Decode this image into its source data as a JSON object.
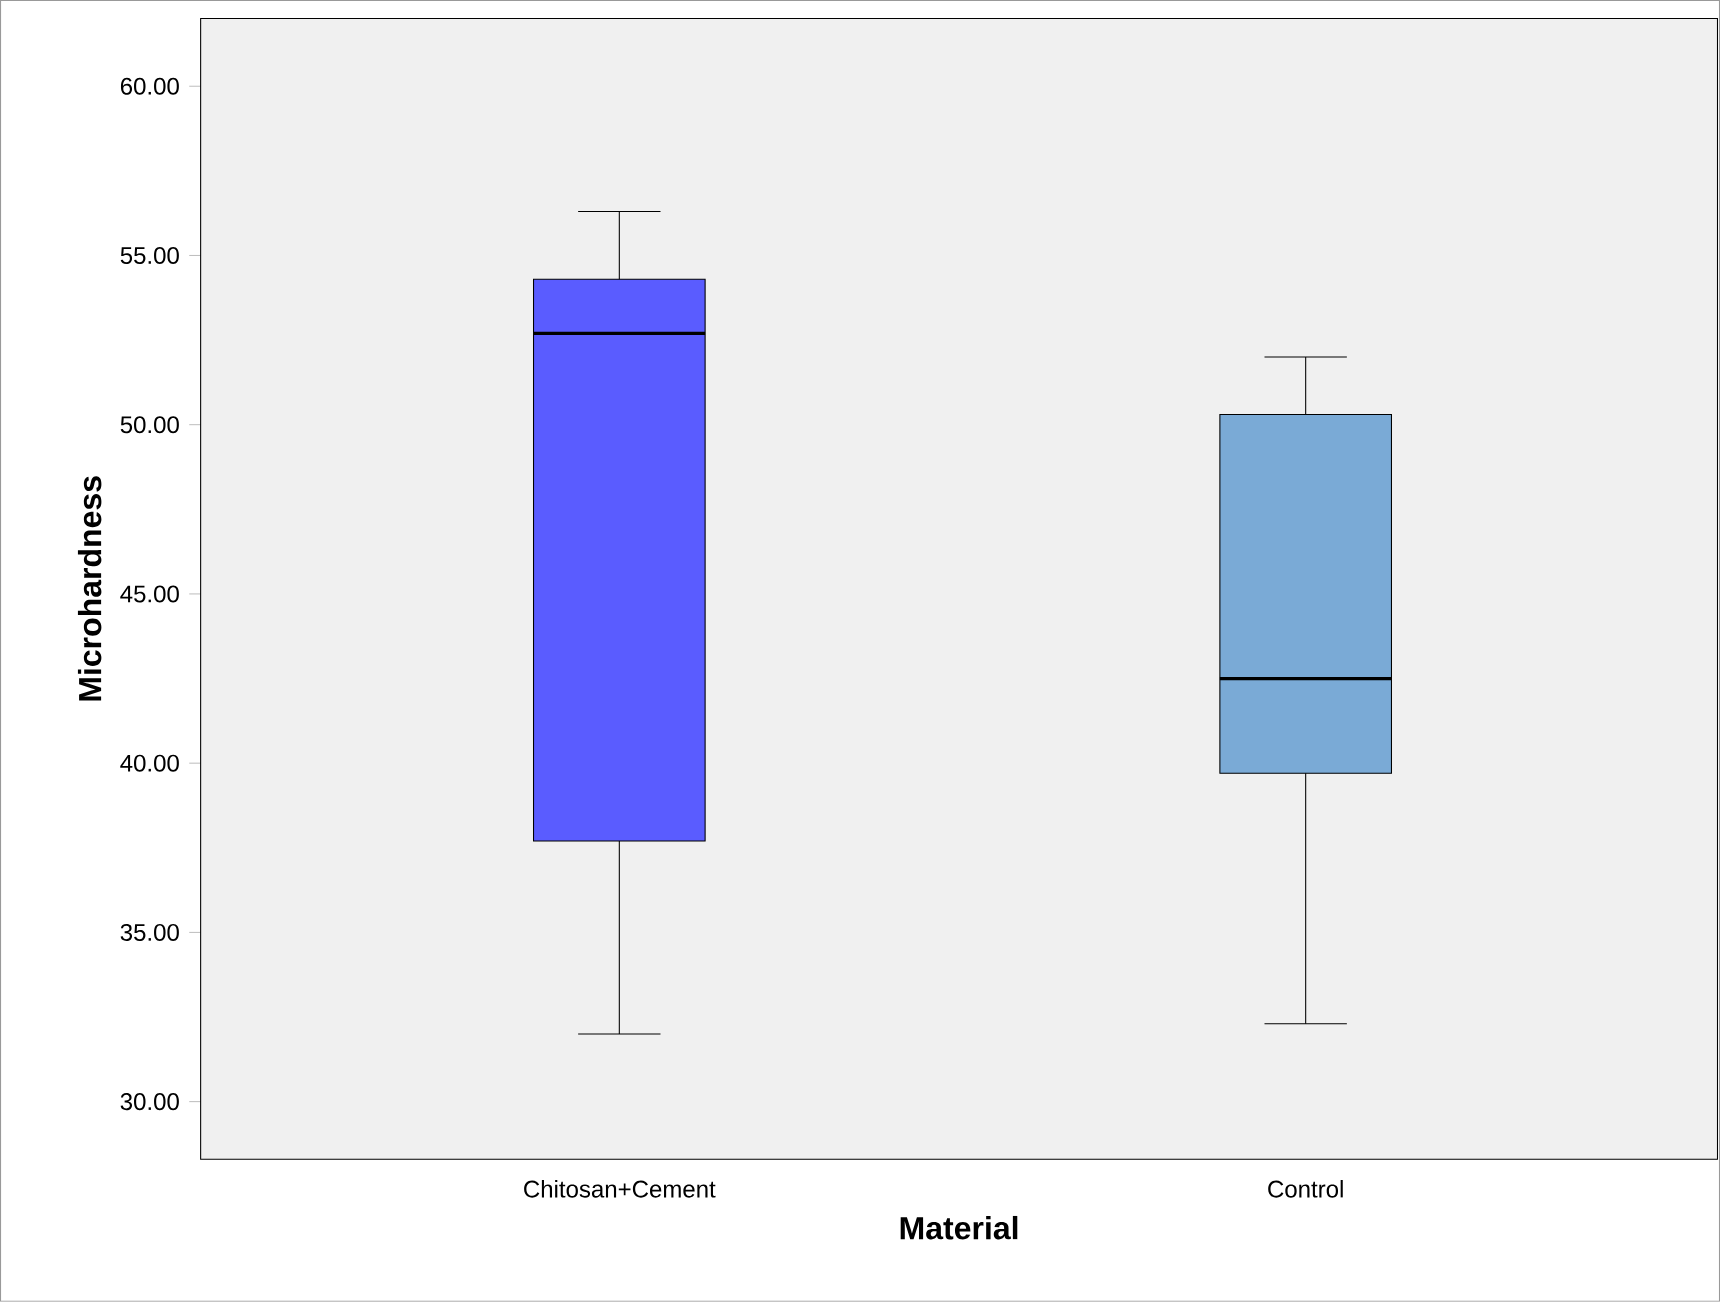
{
  "chart_data": {
    "type": "box",
    "xlabel": "Material",
    "ylabel": "Microhardness",
    "categories": [
      "Chitosan+Cement",
      "Control"
    ],
    "colors": [
      "#5a5cff",
      "#7aaad6"
    ],
    "boxes": [
      {
        "low": 32.0,
        "q1": 37.7,
        "median": 52.7,
        "q3": 54.3,
        "high": 56.3
      },
      {
        "low": 32.3,
        "q1": 39.7,
        "median": 42.5,
        "q3": 50.3,
        "high": 52.0
      }
    ],
    "ylim": [
      28.3,
      62
    ],
    "yticks": [
      {
        "value": 30,
        "label": "30.00"
      },
      {
        "value": 35,
        "label": "35.00"
      },
      {
        "value": 40,
        "label": "40.00"
      },
      {
        "value": 45,
        "label": "45.00"
      },
      {
        "value": 50,
        "label": "50.00"
      },
      {
        "value": 55,
        "label": "55.00"
      },
      {
        "value": 60,
        "label": "60.00"
      }
    ]
  }
}
